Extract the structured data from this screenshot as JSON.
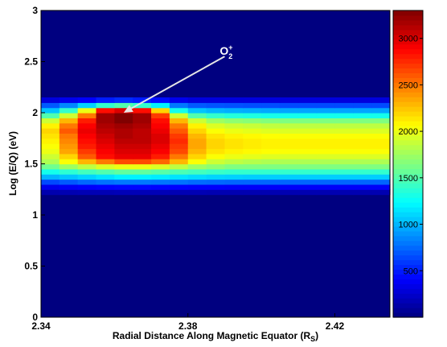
{
  "chart_data": {
    "type": "heatmap",
    "title": "",
    "xlabel": "Radial Distance Along Magnetic Equator (R",
    "xlabel_sub": "S",
    "xlabel_close": ")",
    "ylabel": "Log (E/Q) (eV)",
    "xlim": [
      2.34,
      2.435
    ],
    "ylim": [
      0,
      3
    ],
    "x_ticks": [
      {
        "value": 2.34,
        "label": "2.34"
      },
      {
        "value": 2.38,
        "label": "2.38"
      },
      {
        "value": 2.42,
        "label": "2.42"
      }
    ],
    "y_ticks": [
      {
        "value": 0,
        "label": "0"
      },
      {
        "value": 0.5,
        "label": "0.5"
      },
      {
        "value": 1,
        "label": "1"
      },
      {
        "value": 1.5,
        "label": "1.5"
      },
      {
        "value": 2,
        "label": "2"
      },
      {
        "value": 2.5,
        "label": "2.5"
      },
      {
        "value": 3,
        "label": "3"
      }
    ],
    "colorbar": {
      "min": 0,
      "max": 3300,
      "colormap": "jet",
      "ticks": [
        {
          "value": 500,
          "label": "500"
        },
        {
          "value": 1000,
          "label": "1000"
        },
        {
          "value": 1500,
          "label": "1500"
        },
        {
          "value": 2000,
          "label": "2000"
        },
        {
          "value": 2500,
          "label": "2500"
        },
        {
          "value": 3000,
          "label": "3000"
        }
      ]
    },
    "grid": false,
    "background_value": 0,
    "x_bins": [
      2.34,
      2.345,
      2.35,
      2.355,
      2.36,
      2.365,
      2.37,
      2.375,
      2.38,
      2.385,
      2.39,
      2.395,
      2.4,
      2.405,
      2.41,
      2.415,
      2.42,
      2.425,
      2.43
    ],
    "x_bin_width": 0.005,
    "y_bins": [
      1.2,
      1.25,
      1.3,
      1.35,
      1.4,
      1.45,
      1.5,
      1.55,
      1.6,
      1.65,
      1.7,
      1.75,
      1.8,
      1.85,
      1.9,
      1.95,
      2.0,
      2.05,
      2.1
    ],
    "y_bin_height": 0.05,
    "z_rows": [
      [
        150,
        160,
        170,
        170,
        180,
        180,
        180,
        170,
        170,
        160,
        160,
        160,
        160,
        160,
        160,
        160,
        160,
        160,
        160
      ],
      [
        350,
        380,
        400,
        420,
        430,
        430,
        420,
        410,
        400,
        400,
        390,
        390,
        390,
        390,
        390,
        390,
        390,
        390,
        390
      ],
      [
        650,
        700,
        750,
        780,
        800,
        800,
        790,
        780,
        760,
        750,
        740,
        740,
        740,
        740,
        740,
        740,
        740,
        740,
        740
      ],
      [
        1000,
        1050,
        1100,
        1150,
        1200,
        1200,
        1180,
        1150,
        1120,
        1100,
        1090,
        1080,
        1080,
        1080,
        1080,
        1080,
        1080,
        1080,
        1080
      ],
      [
        1300,
        1380,
        1450,
        1500,
        1550,
        1550,
        1520,
        1480,
        1450,
        1420,
        1400,
        1400,
        1400,
        1400,
        1400,
        1400,
        1400,
        1400,
        1400
      ],
      [
        1600,
        1750,
        1850,
        1950,
        2000,
        2000,
        1950,
        1850,
        1750,
        1700,
        1650,
        1650,
        1650,
        1650,
        1650,
        1650,
        1650,
        1650,
        1650
      ],
      [
        1800,
        2050,
        2300,
        2500,
        2650,
        2650,
        2550,
        2300,
        2050,
        1900,
        1850,
        1820,
        1800,
        1800,
        1800,
        1800,
        1800,
        1800,
        1800
      ],
      [
        1900,
        2200,
        2600,
        2850,
        2950,
        2950,
        2800,
        2500,
        2200,
        2050,
        2000,
        1980,
        1960,
        1950,
        1950,
        1950,
        1950,
        1950,
        1950
      ],
      [
        2000,
        2350,
        2700,
        2900,
        3000,
        3000,
        2900,
        2650,
        2300,
        2150,
        2100,
        2080,
        2060,
        2050,
        2050,
        2050,
        2050,
        2050,
        2050
      ],
      [
        2050,
        2400,
        2800,
        2950,
        3050,
        3050,
        2950,
        2700,
        2350,
        2200,
        2150,
        2120,
        2100,
        2100,
        2100,
        2100,
        2100,
        2100,
        2100
      ],
      [
        2100,
        2450,
        2850,
        3000,
        3100,
        3100,
        3000,
        2750,
        2350,
        2200,
        2150,
        2120,
        2100,
        2100,
        2100,
        2100,
        2100,
        2100,
        2100
      ],
      [
        2150,
        2500,
        2900,
        3050,
        3150,
        3100,
        3000,
        2700,
        2300,
        2150,
        2100,
        2080,
        2060,
        2050,
        2050,
        2050,
        2050,
        2050,
        2050
      ],
      [
        2200,
        2600,
        2950,
        3100,
        3150,
        3100,
        2950,
        2600,
        2200,
        2050,
        2000,
        1980,
        1960,
        1950,
        1950,
        1950,
        1950,
        1950,
        1950
      ],
      [
        2100,
        2500,
        2900,
        3150,
        3200,
        3150,
        2900,
        2500,
        2100,
        1950,
        1900,
        1880,
        1860,
        1850,
        1850,
        1850,
        1850,
        1850,
        1850
      ],
      [
        1900,
        2300,
        2800,
        3200,
        3300,
        3200,
        2850,
        2300,
        1900,
        1750,
        1700,
        1680,
        1660,
        1650,
        1650,
        1650,
        1650,
        1650,
        1650
      ],
      [
        1500,
        1900,
        2500,
        3200,
        3300,
        3200,
        2700,
        1900,
        1500,
        1400,
        1350,
        1330,
        1310,
        1300,
        1300,
        1300,
        1300,
        1300,
        1300
      ],
      [
        1050,
        1400,
        2000,
        2850,
        3000,
        2850,
        2200,
        1300,
        1050,
        1000,
        980,
        970,
        960,
        950,
        950,
        950,
        950,
        950,
        950
      ],
      [
        700,
        850,
        1100,
        1400,
        1500,
        1400,
        1200,
        800,
        700,
        680,
        670,
        660,
        660,
        650,
        650,
        650,
        650,
        650,
        650
      ],
      [
        300,
        350,
        400,
        500,
        550,
        500,
        450,
        350,
        300,
        300,
        300,
        300,
        300,
        300,
        300,
        300,
        300,
        300,
        300
      ]
    ],
    "annotation": {
      "text": "O",
      "sub": "2",
      "sup": "+",
      "arrow_tail": {
        "x": 2.39,
        "y": 2.55
      },
      "arrow_head": {
        "x": 2.3625,
        "y": 2.0
      }
    }
  }
}
